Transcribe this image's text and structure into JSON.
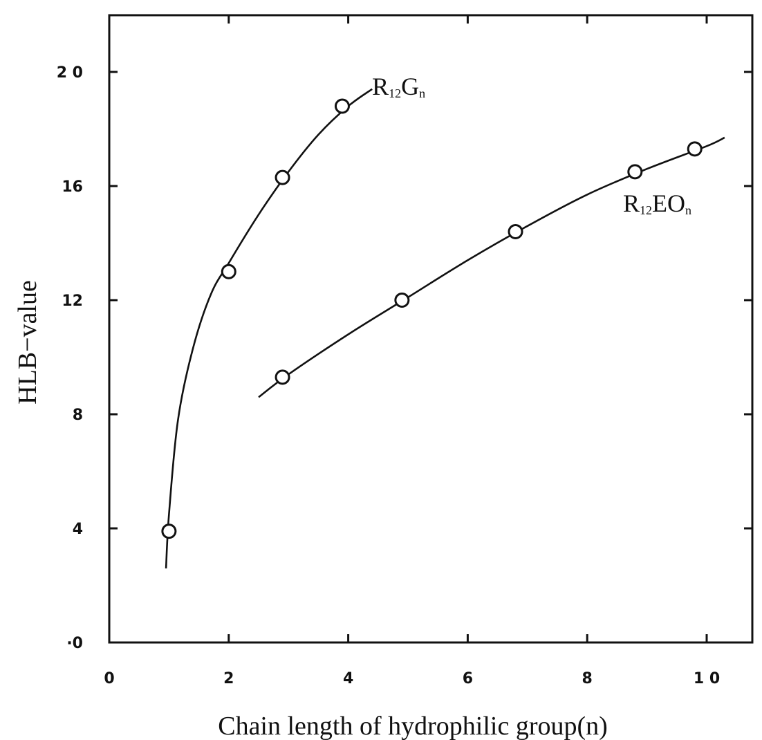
{
  "chart_data": {
    "type": "line",
    "title": "",
    "xlabel": "Chain length of hydrophilic group(n)",
    "ylabel": "HLB−value",
    "xlim": [
      0,
      11
    ],
    "ylim": [
      0,
      22
    ],
    "x_ticks": [
      {
        "value": 0,
        "label": "0"
      },
      {
        "value": 2,
        "label": "2"
      },
      {
        "value": 4,
        "label": "4"
      },
      {
        "value": 6,
        "label": "6"
      },
      {
        "value": 8,
        "label": "8"
      },
      {
        "value": 10,
        "label": "1 0"
      }
    ],
    "y_ticks": [
      {
        "value": 0,
        "label": "·0"
      },
      {
        "value": 4,
        "label": "4"
      },
      {
        "value": 8,
        "label": "8"
      },
      {
        "value": 12,
        "label": "12"
      },
      {
        "value": 16,
        "label": "16"
      },
      {
        "value": 20,
        "label": "2 0"
      }
    ],
    "grid": false,
    "legend": "none",
    "series": [
      {
        "name": "R12Gn",
        "label_main": "R",
        "label_sub": "12",
        "label_main2": "G",
        "label_sub2": "n",
        "label_anchor": [
          4.4,
          19.2
        ],
        "x": [
          1,
          2,
          2.9,
          3.9
        ],
        "y": [
          3.9,
          13.0,
          16.3,
          18.8
        ],
        "curve": [
          [
            0.95,
            2.6
          ],
          [
            1.0,
            4.5
          ],
          [
            1.15,
            7.8
          ],
          [
            1.4,
            10.3
          ],
          [
            1.7,
            12.2
          ],
          [
            2.0,
            13.3
          ],
          [
            2.5,
            15.0
          ],
          [
            3.0,
            16.5
          ],
          [
            3.5,
            17.8
          ],
          [
            4.0,
            18.8
          ],
          [
            4.4,
            19.4
          ]
        ]
      },
      {
        "name": "R12EOn",
        "label_main": "R",
        "label_sub": "12",
        "label_main2": "EO",
        "label_sub2": "n",
        "label_anchor": [
          8.6,
          15.1
        ],
        "x": [
          2.9,
          4.9,
          6.8,
          8.8,
          9.8
        ],
        "y": [
          9.3,
          12.0,
          14.4,
          16.5,
          17.3
        ],
        "curve": [
          [
            2.5,
            8.6
          ],
          [
            3.0,
            9.4
          ],
          [
            4.0,
            10.8
          ],
          [
            5.0,
            12.1
          ],
          [
            6.0,
            13.4
          ],
          [
            7.0,
            14.6
          ],
          [
            8.0,
            15.7
          ],
          [
            9.0,
            16.6
          ],
          [
            10.0,
            17.4
          ],
          [
            10.3,
            17.7
          ]
        ]
      }
    ]
  }
}
